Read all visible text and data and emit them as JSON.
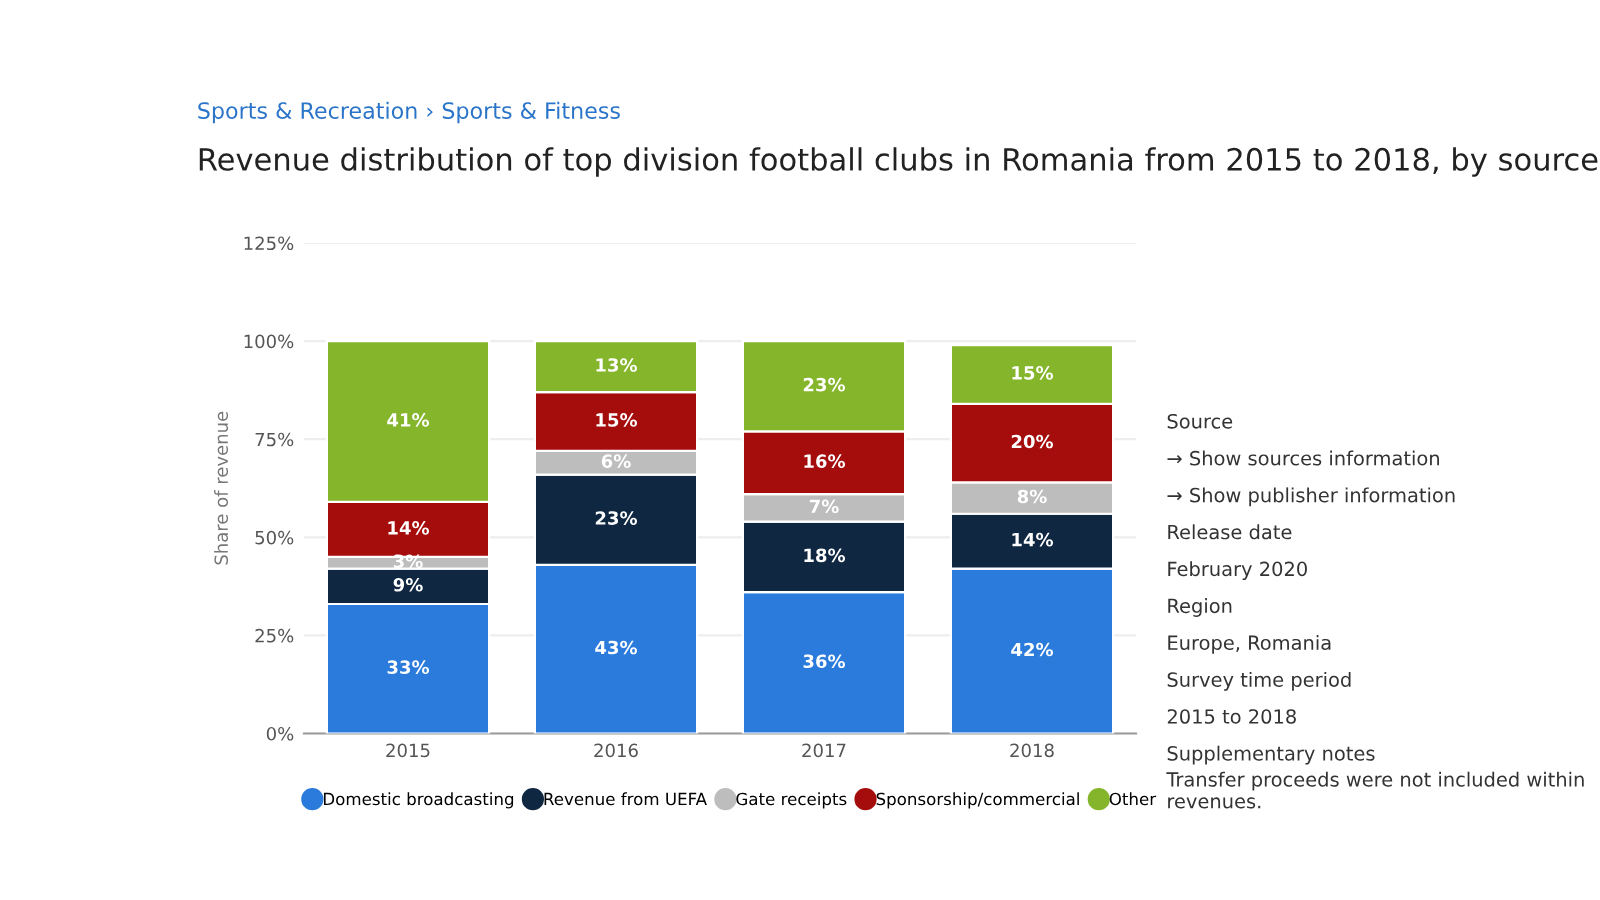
{
  "chart_data": {
    "type": "bar",
    "title": "Revenue distribution of top division football clubs in Romania from 2015 to 2018, by source",
    "ylabel": "Share of revenue",
    "categories": [
      "2015",
      "2016",
      "2017",
      "2018"
    ],
    "stacked": true,
    "series": [
      {
        "name": "Domestic broadcasting",
        "color": "#2b7bdc",
        "values": [
          33,
          43,
          36,
          42
        ],
        "value_labels": [
          "33%",
          "43%",
          "36%",
          "42%"
        ]
      },
      {
        "name": "Revenue from UEFA",
        "color": "#0f2741",
        "values": [
          9,
          23,
          18,
          14
        ],
        "value_labels": [
          "9%",
          "23%",
          "18%",
          "14%"
        ]
      },
      {
        "name": "Gate receipts",
        "color": "#bdbdbd",
        "values": [
          3,
          6,
          7,
          8
        ],
        "value_labels": [
          "3%",
          "6%",
          "7%",
          "8%"
        ]
      },
      {
        "name": "Sponsorship/commercial",
        "color": "#a50d0d",
        "values": [
          14,
          15,
          16,
          20
        ],
        "value_labels": [
          "14%",
          "15%",
          "16%",
          "20%"
        ]
      },
      {
        "name": "Other",
        "color": "#84b52a",
        "values": [
          41,
          13,
          23,
          15
        ],
        "value_labels": [
          "41%",
          "13%",
          "23%",
          "15%"
        ]
      }
    ],
    "ylim": [
      0,
      125
    ],
    "yticks": [
      {
        "value": 0,
        "label": "0%"
      },
      {
        "value": 25,
        "label": "25%"
      },
      {
        "value": 50,
        "label": "50%"
      },
      {
        "value": 75,
        "label": "75%"
      },
      {
        "value": 100,
        "label": "100%"
      },
      {
        "value": 125,
        "label": "125%"
      }
    ],
    "grid": "y",
    "legend": "bottom",
    "annotations": [
      "Sports & Recreation › Sports & Fitness",
      "Source",
      "→ Show sources information",
      "→ Show publisher information",
      "Release date",
      "February 2020",
      "Region",
      "Europe, Romania",
      "Survey time period",
      "2015 to 2018",
      "Supplementary notes",
      "Transfer proceeds were not included within revenues."
    ]
  }
}
